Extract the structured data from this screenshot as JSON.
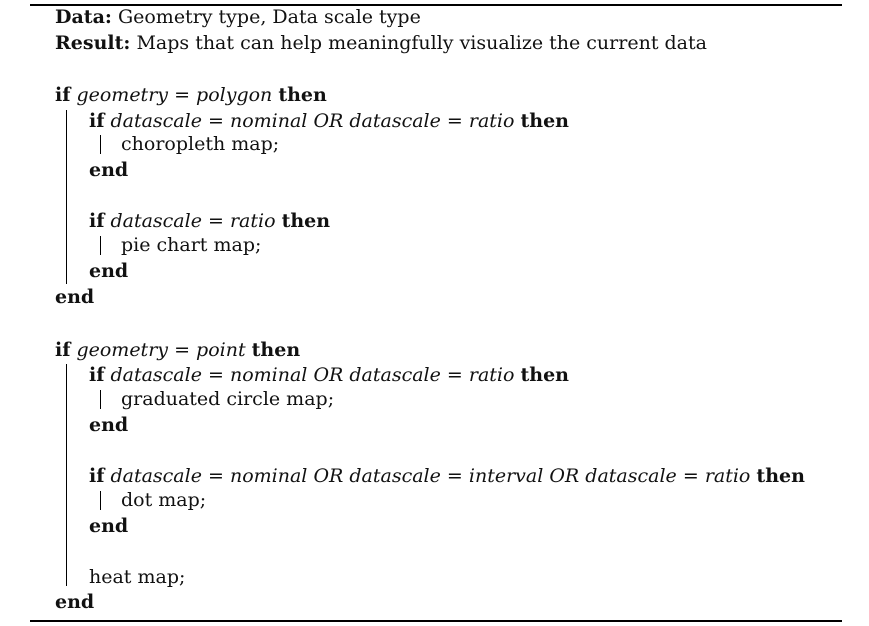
{
  "header": {
    "data_label": "Data:",
    "data_text": "Geometry type, Data scale type",
    "result_label": "Result:",
    "result_text": "Maps that can help meaningfully visualize the current data"
  },
  "keywords": {
    "if": "if",
    "then": "then",
    "end": "end",
    "eq": "=",
    "or": "OR"
  },
  "block1": {
    "var": "geometry",
    "val": "polygon",
    "cond1": {
      "var": "datascale",
      "v1": "nominal",
      "v2": "ratio",
      "stmt": "choropleth map;"
    },
    "cond2": {
      "var": "datascale",
      "v1": "ratio",
      "stmt": "pie chart map;"
    }
  },
  "block2": {
    "var": "geometry",
    "val": "point",
    "cond1": {
      "var": "datascale",
      "v1": "nominal",
      "v2": "ratio",
      "stmt": "graduated circle map;"
    },
    "cond2": {
      "var": "datascale",
      "v1": "nominal",
      "v2": "interval",
      "v3": "ratio",
      "stmt": "dot map;"
    },
    "stmt": "heat map;"
  }
}
